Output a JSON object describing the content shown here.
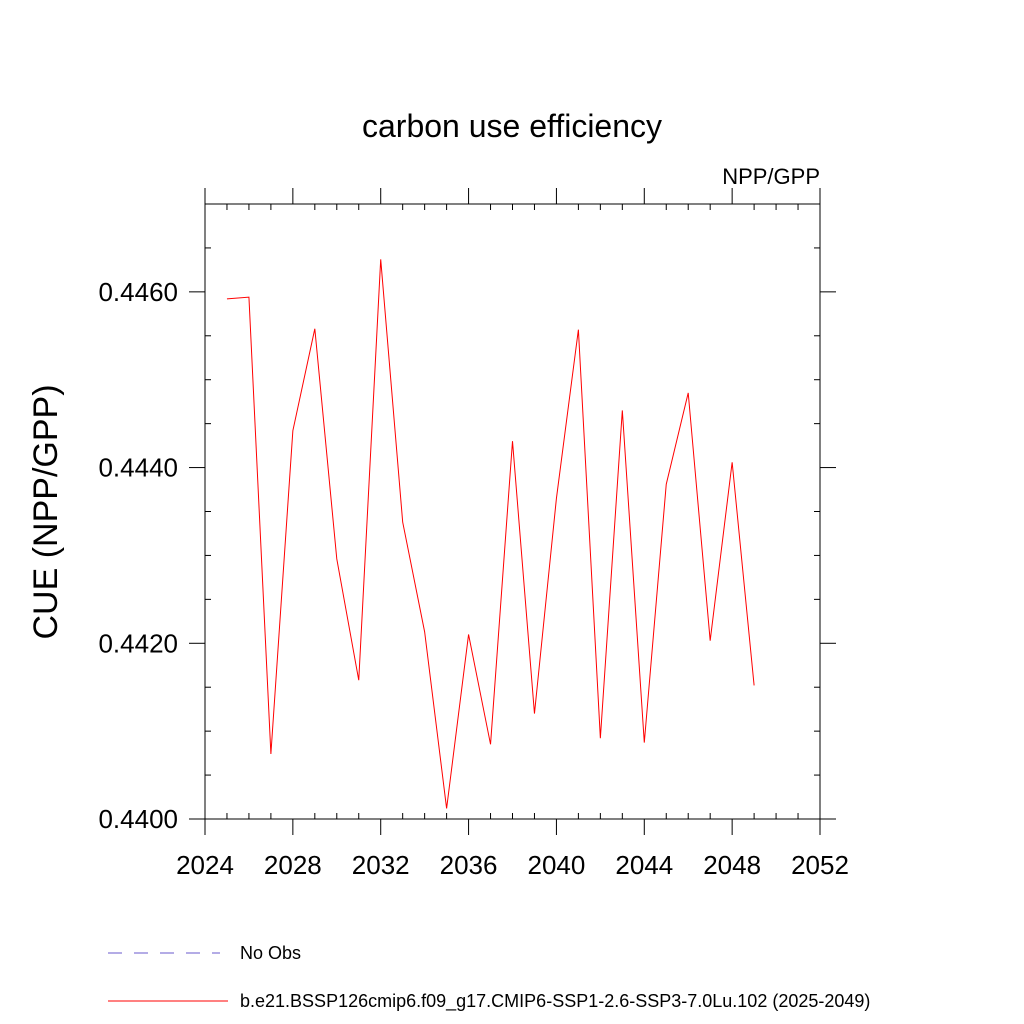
{
  "chart_data": {
    "type": "line",
    "title": "carbon use efficiency",
    "subtitle": "NPP/GPP",
    "xlabel": "",
    "ylabel": "CUE  (NPP/GPP)",
    "xlim": [
      2024,
      2052
    ],
    "ylim": [
      0.44,
      0.447
    ],
    "x_ticks": [
      "2024",
      "2028",
      "2032",
      "2036",
      "2040",
      "2044",
      "2048",
      "2052"
    ],
    "y_ticks": [
      "0.4400",
      "0.4420",
      "0.4440",
      "0.4460"
    ],
    "grid": false,
    "legend_position": "bottom",
    "series": [
      {
        "name": "b.e21.BSSP126cmip6.f09_g17.CMIP6-SSP1-2.6-SSP3-7.0Lu.102 (2025-2049)",
        "color": "#ff0000",
        "x": [
          2025,
          2026,
          2027,
          2028,
          2029,
          2030,
          2031,
          2032,
          2033,
          2034,
          2035,
          2036,
          2037,
          2038,
          2039,
          2040,
          2041,
          2042,
          2043,
          2044,
          2045,
          2046,
          2047,
          2048,
          2049
        ],
        "values": [
          0.44592,
          0.44594,
          0.44074,
          0.44442,
          0.44558,
          0.44296,
          0.44158,
          0.44637,
          0.44338,
          0.44213,
          0.44012,
          0.4421,
          0.44085,
          0.4443,
          0.4412,
          0.44365,
          0.44557,
          0.44092,
          0.44465,
          0.44087,
          0.44381,
          0.44485,
          0.44203,
          0.44406,
          0.44152
        ]
      }
    ],
    "legend": [
      {
        "label": "No Obs",
        "color": "#6a5acd",
        "style": "dashed"
      },
      {
        "label": "b.e21.BSSP126cmip6.f09_g17.CMIP6-SSP1-2.6-SSP3-7.0Lu.102 (2025-2049)",
        "color": "#ff0000",
        "style": "solid"
      }
    ]
  }
}
